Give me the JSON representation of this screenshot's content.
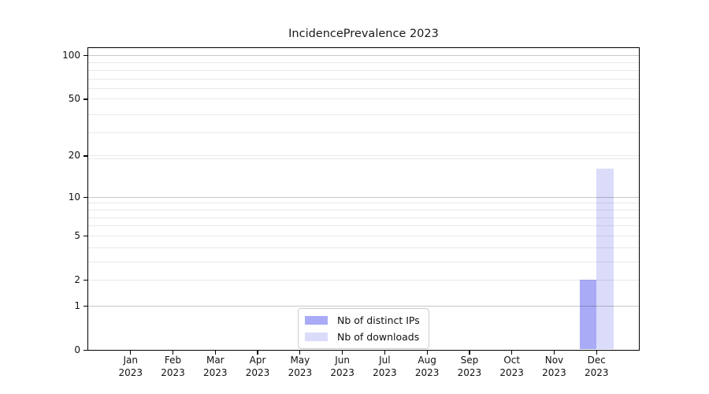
{
  "chart_data": {
    "type": "bar",
    "title": "IncidencePrevalence 2023",
    "categories": [
      "Jan 2023",
      "Feb 2023",
      "Mar 2023",
      "Apr 2023",
      "May 2023",
      "Jun 2023",
      "Jul 2023",
      "Aug 2023",
      "Sep 2023",
      "Oct 2023",
      "Nov 2023",
      "Dec 2023"
    ],
    "series": [
      {
        "name": "Nb of distinct IPs",
        "color": "#a9abf6",
        "values": [
          0,
          0,
          0,
          0,
          0,
          0,
          0,
          0,
          0,
          0,
          0,
          2
        ]
      },
      {
        "name": "Nb of downloads",
        "color": "#dbdcfa",
        "values": [
          0,
          0,
          0,
          0,
          0,
          0,
          0,
          0,
          0,
          0,
          0,
          16
        ]
      }
    ],
    "xlabel": "",
    "ylabel": "",
    "yscale": "log10(value+1)",
    "ylim": [
      0,
      112
    ],
    "y_ticks": [
      0,
      1,
      2,
      5,
      10,
      20,
      50,
      100
    ],
    "major_gridlines": [
      1,
      10,
      100
    ],
    "minor_gridlines": [
      2,
      3,
      4,
      5,
      6,
      7,
      8,
      9,
      19,
      20,
      29,
      39,
      50,
      59,
      69,
      79,
      89
    ],
    "grid": "horizontal",
    "legend_position": "lower center",
    "colors": {
      "bar_distinct_ips": "#a9abf6",
      "bar_downloads": "#dbdcfa",
      "axis": "#000000",
      "grid_minor": "#e9e9e9",
      "grid_major": "#c7c7c7",
      "background": "#ffffff"
    }
  }
}
